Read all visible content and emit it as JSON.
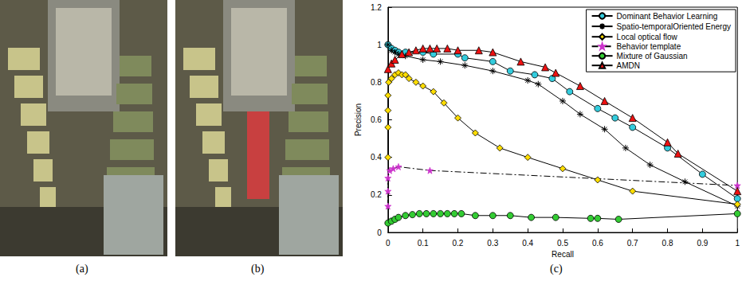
{
  "captions": [
    "(a)",
    "(b)",
    "(c)"
  ],
  "chart_data": {
    "type": "line",
    "xlabel": "Recall",
    "ylabel": "Precision",
    "xlim": [
      0,
      1
    ],
    "ylim": [
      0,
      1.2
    ],
    "xticks": [
      0,
      0.1,
      0.2,
      0.3,
      0.4,
      0.5,
      0.6,
      0.7,
      0.8,
      0.9,
      1
    ],
    "yticks": [
      0,
      0.2,
      0.4,
      0.6,
      0.8,
      1,
      1.2
    ],
    "grid": false,
    "legend": "top-right",
    "series": [
      {
        "name": "Dominant Behavior Learning",
        "color": "#33ccdd",
        "marker": "circle",
        "line_style": "solid",
        "x": [
          0,
          0.01,
          0.02,
          0.03,
          0.05,
          0.1,
          0.13,
          0.2,
          0.22,
          0.3,
          0.35,
          0.42,
          0.47,
          0.52,
          0.6,
          0.65,
          0.7,
          0.8,
          0.9,
          1
        ],
        "values": [
          1.0,
          0.98,
          0.97,
          0.96,
          0.96,
          0.96,
          0.95,
          0.95,
          0.93,
          0.91,
          0.86,
          0.84,
          0.82,
          0.75,
          0.66,
          0.61,
          0.56,
          0.45,
          0.31,
          0.18
        ]
      },
      {
        "name": "Spatio-temporalOriented Energy",
        "color": "#000000",
        "marker": "asterisk",
        "line_style": "solid",
        "x": [
          0,
          0.01,
          0.02,
          0.03,
          0.05,
          0.1,
          0.15,
          0.22,
          0.3,
          0.4,
          0.43,
          0.5,
          0.55,
          0.62,
          0.68,
          0.75,
          0.85,
          1
        ],
        "values": [
          1.0,
          0.97,
          0.96,
          0.95,
          0.94,
          0.92,
          0.91,
          0.89,
          0.86,
          0.81,
          0.79,
          0.7,
          0.63,
          0.55,
          0.45,
          0.36,
          0.27,
          0.14
        ]
      },
      {
        "name": "Local optical flow",
        "color": "#ffdd00",
        "marker": "diamond",
        "line_style": "solid",
        "x": [
          0,
          0,
          0,
          0,
          0.002,
          0.01,
          0.02,
          0.03,
          0.04,
          0.05,
          0.06,
          0.08,
          0.1,
          0.13,
          0.16,
          0.2,
          0.25,
          0.32,
          0.4,
          0.5,
          0.6,
          0.7,
          1
        ],
        "values": [
          0.4,
          0.56,
          0.65,
          0.73,
          0.8,
          0.82,
          0.84,
          0.85,
          0.84,
          0.84,
          0.82,
          0.8,
          0.78,
          0.75,
          0.69,
          0.61,
          0.53,
          0.45,
          0.4,
          0.34,
          0.28,
          0.22,
          0.15
        ]
      },
      {
        "name": "Behavior template",
        "color": "#cc33cc",
        "marker": "star",
        "line_style": "dashdot",
        "x": [
          0,
          0,
          0,
          0.005,
          0.015,
          0.03,
          0.12,
          1
        ],
        "values": [
          0.14,
          0.22,
          0.29,
          0.33,
          0.34,
          0.35,
          0.33,
          0.25
        ]
      },
      {
        "name": "Mixture of Gaussian",
        "color": "#33cc33",
        "marker": "circle",
        "line_style": "solid",
        "x": [
          0,
          0.01,
          0.02,
          0.03,
          0.05,
          0.07,
          0.09,
          0.11,
          0.13,
          0.15,
          0.17,
          0.19,
          0.21,
          0.25,
          0.3,
          0.35,
          0.41,
          0.48,
          0.58,
          0.6,
          0.66,
          1
        ],
        "values": [
          0.05,
          0.06,
          0.07,
          0.08,
          0.09,
          0.095,
          0.1,
          0.1,
          0.1,
          0.1,
          0.1,
          0.1,
          0.1,
          0.09,
          0.09,
          0.09,
          0.08,
          0.08,
          0.075,
          0.075,
          0.07,
          0.1
        ]
      },
      {
        "name": "AMDN",
        "color": "#ee1111",
        "marker": "triangle",
        "line_style": "solid",
        "x": [
          0,
          0.01,
          0.02,
          0.04,
          0.06,
          0.08,
          0.1,
          0.12,
          0.14,
          0.17,
          0.2,
          0.26,
          0.3,
          0.38,
          0.45,
          0.48,
          0.55,
          0.62,
          0.7,
          0.8,
          0.83,
          1
        ],
        "values": [
          0.87,
          0.9,
          0.92,
          0.95,
          0.96,
          0.97,
          0.98,
          0.98,
          0.98,
          0.98,
          0.97,
          0.97,
          0.96,
          0.91,
          0.88,
          0.85,
          0.78,
          0.7,
          0.61,
          0.48,
          0.42,
          0.22
        ]
      }
    ]
  }
}
